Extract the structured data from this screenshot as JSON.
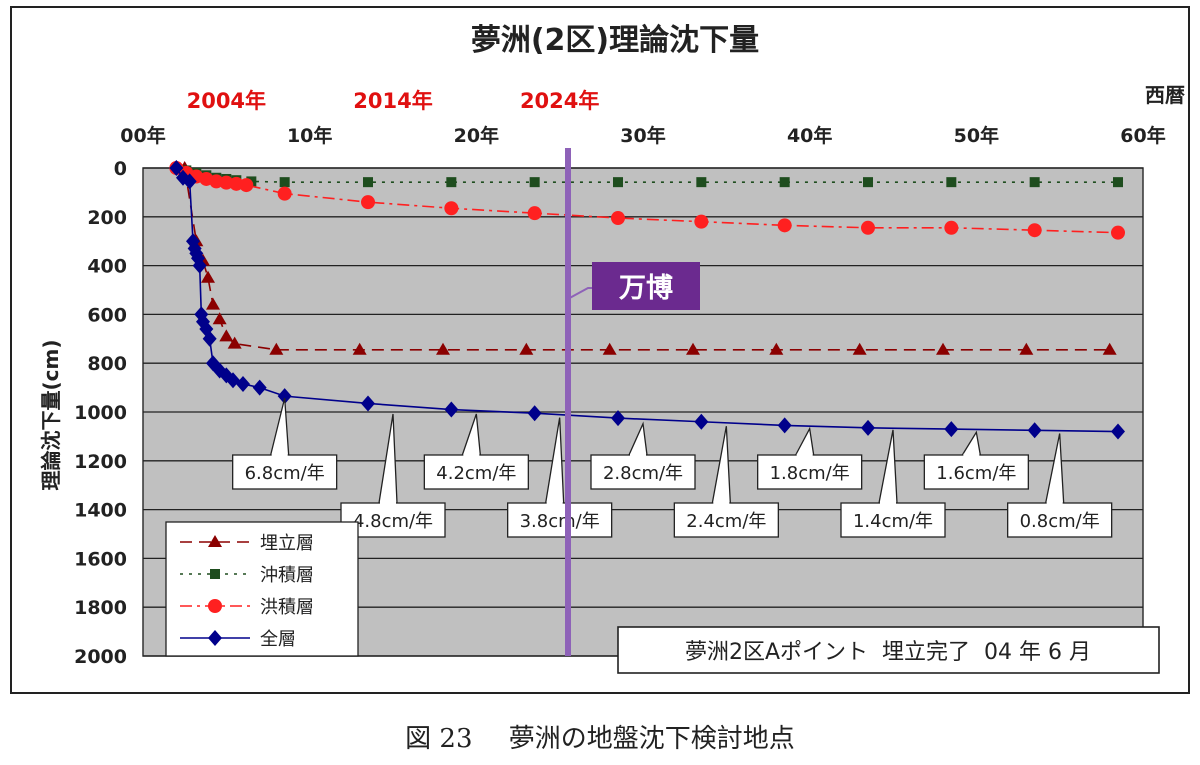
{
  "caption": {
    "figure_number": "図 23",
    "text": "夢洲の地盤沈下検討地点"
  },
  "chart_data": {
    "type": "line",
    "title": "夢洲(2区)理論沈下量",
    "ylabel": "理論沈下量(cm)",
    "xlabel": "西暦",
    "xlim": [
      0,
      60
    ],
    "ylim": [
      0,
      2000
    ],
    "y_inverted": true,
    "x_ticks": [
      "00年",
      "10年",
      "20年",
      "30年",
      "40年",
      "50年",
      "60年"
    ],
    "x_tick_values": [
      0,
      10,
      20,
      30,
      40,
      50,
      60
    ],
    "y_ticks": [
      0,
      200,
      400,
      600,
      800,
      1000,
      1200,
      1400,
      1600,
      1800,
      2000
    ],
    "year_labels": [
      {
        "text": "2004年",
        "x": 5
      },
      {
        "text": "2014年",
        "x": 15
      },
      {
        "text": "2024年",
        "x": 25
      }
    ],
    "grid": "horizontal",
    "plot_background": "#c0c0c0",
    "legend_position": "bottom-left",
    "series": [
      {
        "name": "埋立層",
        "color": "#8b0000",
        "marker": "triangle",
        "dash": "dashed",
        "x": [
          2.5,
          3.2,
          3.6,
          3.9,
          4.2,
          4.6,
          5.0,
          5.5,
          8.0,
          13.0,
          18.0,
          23.0,
          28.0,
          33.0,
          38.0,
          43.0,
          48.0,
          53.0,
          58.0
        ],
        "y": [
          0,
          300,
          380,
          450,
          560,
          620,
          690,
          720,
          745,
          745,
          745,
          745,
          745,
          745,
          745,
          745,
          745,
          745,
          745
        ]
      },
      {
        "name": "沖積層",
        "color": "#1e4d1e",
        "marker": "square",
        "dash": "dotted",
        "x": [
          2.0,
          2.6,
          3.2,
          3.8,
          4.4,
          5.0,
          5.6,
          6.5,
          8.5,
          13.5,
          18.5,
          23.5,
          28.5,
          33.5,
          38.5,
          43.5,
          48.5,
          53.5,
          58.5
        ],
        "y": [
          0,
          10,
          20,
          30,
          40,
          45,
          50,
          55,
          58,
          58,
          58,
          58,
          58,
          58,
          58,
          58,
          58,
          58,
          58
        ]
      },
      {
        "name": "洪積層",
        "color": "#ff2020",
        "marker": "circle",
        "dash": "dashdot",
        "x": [
          2.0,
          2.6,
          3.2,
          3.8,
          4.4,
          5.0,
          5.6,
          6.2,
          8.5,
          13.5,
          18.5,
          23.5,
          28.5,
          33.5,
          38.5,
          43.5,
          48.5,
          53.5,
          58.5
        ],
        "y": [
          0,
          20,
          35,
          45,
          55,
          60,
          65,
          70,
          105,
          140,
          165,
          185,
          205,
          220,
          235,
          245,
          245,
          255,
          265
        ]
      },
      {
        "name": "全層",
        "color": "#00008b",
        "marker": "diamond",
        "dash": "solid",
        "x": [
          2.0,
          2.4,
          2.8,
          3.0,
          3.1,
          3.2,
          3.3,
          3.4,
          3.5,
          3.6,
          3.8,
          4.0,
          4.2,
          4.6,
          5.0,
          5.4,
          6.0,
          7.0,
          8.5,
          13.5,
          18.5,
          23.5,
          28.5,
          33.5,
          38.5,
          43.5,
          48.5,
          53.5,
          58.5
        ],
        "y": [
          0,
          40,
          55,
          300,
          330,
          350,
          370,
          400,
          600,
          630,
          660,
          700,
          800,
          830,
          850,
          870,
          885,
          900,
          935,
          965,
          990,
          1005,
          1025,
          1040,
          1055,
          1065,
          1070,
          1075,
          1080
        ]
      }
    ],
    "rate_callouts": [
      {
        "text": "6.8cm/年",
        "x": 8.5,
        "y": 935
      },
      {
        "text": "4.8cm/年",
        "x": 15.0,
        "y": 1000
      },
      {
        "text": "4.2cm/年",
        "x": 20.0,
        "y": 1000
      },
      {
        "text": "3.8cm/年",
        "x": 25.0,
        "y": 1015
      },
      {
        "text": "2.8cm/年",
        "x": 30.0,
        "y": 1040
      },
      {
        "text": "2.4cm/年",
        "x": 35.0,
        "y": 1050
      },
      {
        "text": "1.8cm/年",
        "x": 40.0,
        "y": 1060
      },
      {
        "text": "1.4cm/年",
        "x": 45.0,
        "y": 1065
      },
      {
        "text": "1.6cm/年",
        "x": 50.0,
        "y": 1075
      },
      {
        "text": "0.8cm/年",
        "x": 55.0,
        "y": 1080
      }
    ],
    "expo_marker": {
      "label": "万博",
      "x": 25.5,
      "color": "#8e62b8",
      "label_bg": "#6b2a8f"
    },
    "info_box": "夢洲2区Aポイント  埋立完了  04 年 6 月"
  }
}
